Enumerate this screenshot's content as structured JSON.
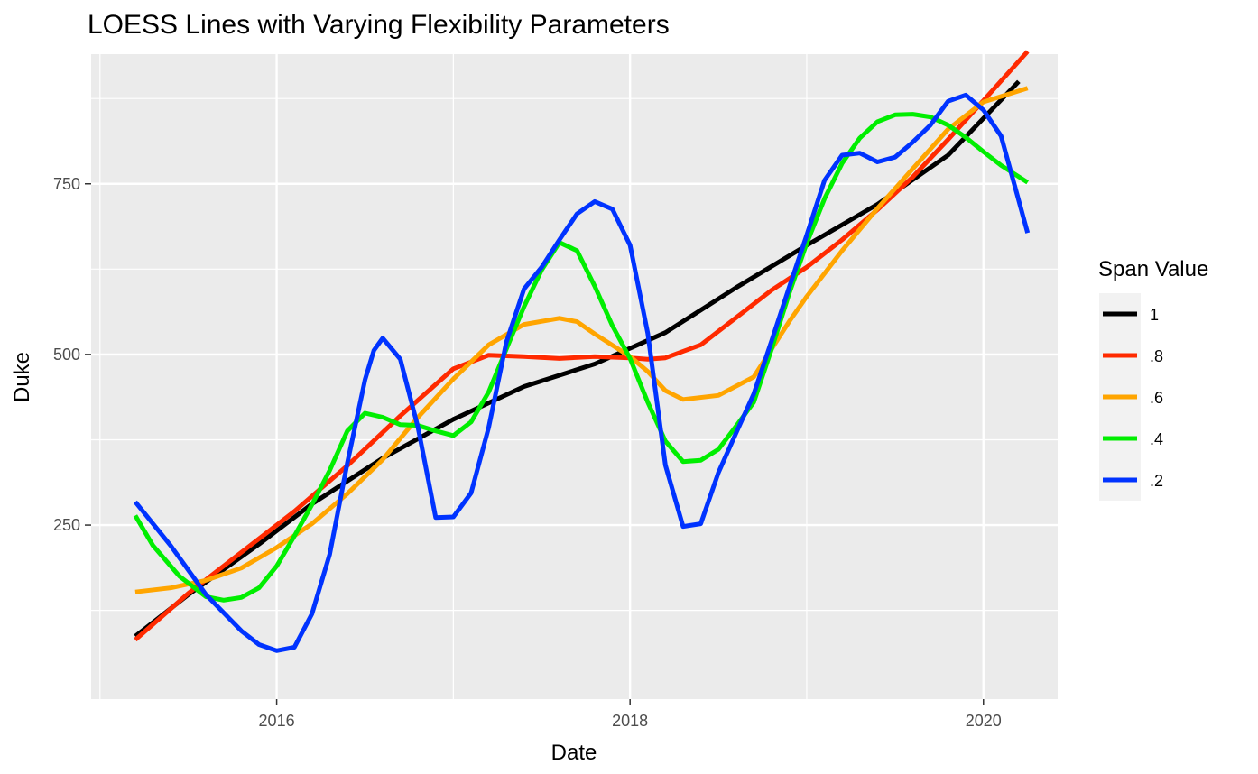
{
  "chart_data": {
    "type": "line",
    "title": "LOESS Lines with Varying Flexibility Parameters",
    "xlabel": "Date",
    "ylabel": "Duke",
    "xlim": [
      2014.95,
      2020.42
    ],
    "ylim": [
      -5,
      940
    ],
    "x_ticks": [
      {
        "value": 2016,
        "label": "2016"
      },
      {
        "value": 2018,
        "label": "2018"
      },
      {
        "value": 2020,
        "label": "2020"
      }
    ],
    "y_ticks": [
      {
        "value": 250,
        "label": "250"
      },
      {
        "value": 500,
        "label": "500"
      },
      {
        "value": 750,
        "label": "750"
      }
    ],
    "grid": true,
    "legend": {
      "title": "Span Value",
      "position": "right"
    },
    "series": [
      {
        "name": "1",
        "color": "#000000",
        "x": [
          2015.2,
          2015.5,
          2015.9,
          2016.2,
          2016.6,
          2017.0,
          2017.4,
          2017.8,
          2018.2,
          2018.6,
          2019.0,
          2019.4,
          2019.8,
          2020.2
        ],
        "y": [
          87,
          148,
          222,
          281,
          348,
          405,
          453,
          486,
          532,
          598,
          660,
          720,
          792,
          900
        ]
      },
      {
        "name": ".8",
        "color": "#ff2a00",
        "x": [
          2015.2,
          2015.5,
          2015.8,
          2016.1,
          2016.4,
          2016.7,
          2017.0,
          2017.2,
          2017.4,
          2017.6,
          2017.8,
          2018.0,
          2018.1,
          2018.2,
          2018.4,
          2018.6,
          2018.8,
          2019.0,
          2019.2,
          2019.4,
          2019.6,
          2019.8,
          2020.0,
          2020.25
        ],
        "y": [
          82,
          150,
          210,
          270,
          337,
          410,
          479,
          499,
          497,
          494,
          497,
          495,
          493,
          495,
          514,
          554,
          594,
          628,
          668,
          712,
          760,
          815,
          872,
          944
        ]
      },
      {
        "name": ".6",
        "color": "#ffa500",
        "x": [
          2015.2,
          2015.4,
          2015.6,
          2015.8,
          2016.0,
          2016.2,
          2016.4,
          2016.6,
          2016.8,
          2017.0,
          2017.2,
          2017.4,
          2017.6,
          2017.7,
          2017.8,
          2018.0,
          2018.1,
          2018.2,
          2018.3,
          2018.5,
          2018.7,
          2018.9,
          2019.0,
          2019.2,
          2019.4,
          2019.6,
          2019.8,
          2020.0,
          2020.25
        ],
        "y": [
          152,
          158,
          169,
          187,
          217,
          252,
          296,
          346,
          408,
          464,
          514,
          544,
          553,
          548,
          530,
          497,
          475,
          447,
          434,
          440,
          467,
          548,
          585,
          652,
          714,
          772,
          830,
          870,
          890
        ]
      },
      {
        "name": ".4",
        "color": "#00ee00",
        "x": [
          2015.2,
          2015.3,
          2015.45,
          2015.6,
          2015.7,
          2015.8,
          2015.9,
          2016.0,
          2016.1,
          2016.2,
          2016.3,
          2016.4,
          2016.5,
          2016.6,
          2016.7,
          2016.8,
          2016.9,
          2017.0,
          2017.1,
          2017.2,
          2017.3,
          2017.4,
          2017.5,
          2017.6,
          2017.7,
          2017.8,
          2017.9,
          2018.0,
          2018.1,
          2018.2,
          2018.3,
          2018.4,
          2018.5,
          2018.6,
          2018.7,
          2018.8,
          2018.9,
          2019.0,
          2019.1,
          2019.2,
          2019.3,
          2019.4,
          2019.5,
          2019.6,
          2019.7,
          2019.8,
          2019.9,
          2020.0,
          2020.1,
          2020.25
        ],
        "y": [
          264,
          220,
          175,
          145,
          140,
          144,
          158,
          190,
          234,
          280,
          330,
          388,
          414,
          408,
          397,
          396,
          388,
          381,
          401,
          445,
          508,
          570,
          624,
          664,
          652,
          600,
          542,
          494,
          430,
          373,
          343,
          345,
          361,
          395,
          430,
          507,
          589,
          663,
          728,
          780,
          817,
          841,
          851,
          852,
          848,
          836,
          818,
          797,
          777,
          752
        ]
      },
      {
        "name": ".2",
        "color": "#0033ff",
        "x": [
          2015.2,
          2015.4,
          2015.6,
          2015.8,
          2015.9,
          2016.0,
          2016.1,
          2016.2,
          2016.3,
          2016.4,
          2016.5,
          2016.55,
          2016.6,
          2016.7,
          2016.8,
          2016.9,
          2017.0,
          2017.1,
          2017.2,
          2017.3,
          2017.4,
          2017.5,
          2017.6,
          2017.7,
          2017.8,
          2017.9,
          2018.0,
          2018.1,
          2018.2,
          2018.3,
          2018.4,
          2018.5,
          2018.6,
          2018.7,
          2018.8,
          2018.9,
          2019.0,
          2019.1,
          2019.2,
          2019.3,
          2019.4,
          2019.5,
          2019.6,
          2019.7,
          2019.8,
          2019.9,
          2020.0,
          2020.1,
          2020.25
        ],
        "y": [
          284,
          220,
          148,
          95,
          75,
          66,
          71,
          120,
          207,
          341,
          463,
          506,
          524,
          493,
          393,
          261,
          262,
          297,
          393,
          518,
          596,
          628,
          668,
          706,
          724,
          713,
          660,
          531,
          338,
          248,
          252,
          327,
          385,
          442,
          519,
          598,
          675,
          755,
          792,
          795,
          782,
          789,
          811,
          836,
          871,
          880,
          858,
          820,
          678
        ]
      }
    ]
  }
}
